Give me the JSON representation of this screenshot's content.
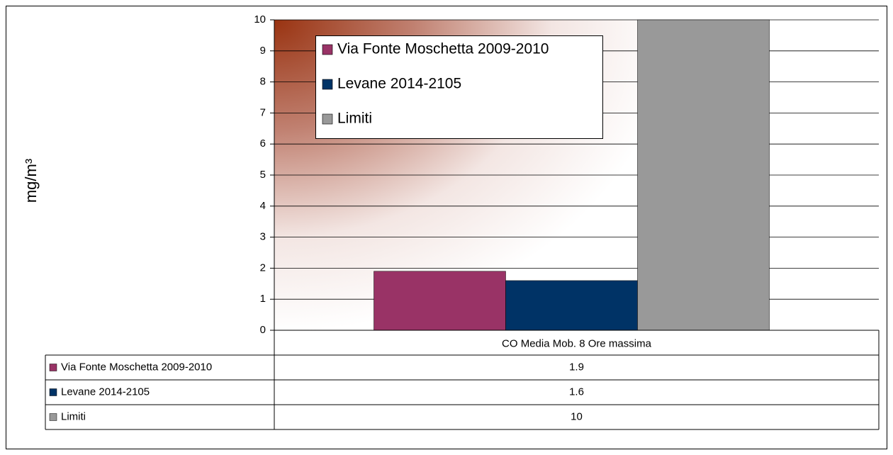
{
  "chart_data": {
    "type": "bar",
    "categories": [
      "CO Media Mob. 8 Ore massima"
    ],
    "series": [
      {
        "name": "Via Fonte Moschetta 2009-2010",
        "color": "#993366",
        "values": [
          1.9
        ]
      },
      {
        "name": "Levane 2014-2105",
        "color": "#003366",
        "values": [
          1.6
        ]
      },
      {
        "name": "Limiti",
        "color": "#999999",
        "values": [
          10
        ]
      }
    ],
    "ylim": [
      0,
      10
    ],
    "yticks": [
      0,
      1,
      2,
      3,
      4,
      5,
      6,
      7,
      8,
      9,
      10
    ],
    "y_label": "mg/m³",
    "grid": true,
    "legend": "top-left",
    "data_table": true
  }
}
